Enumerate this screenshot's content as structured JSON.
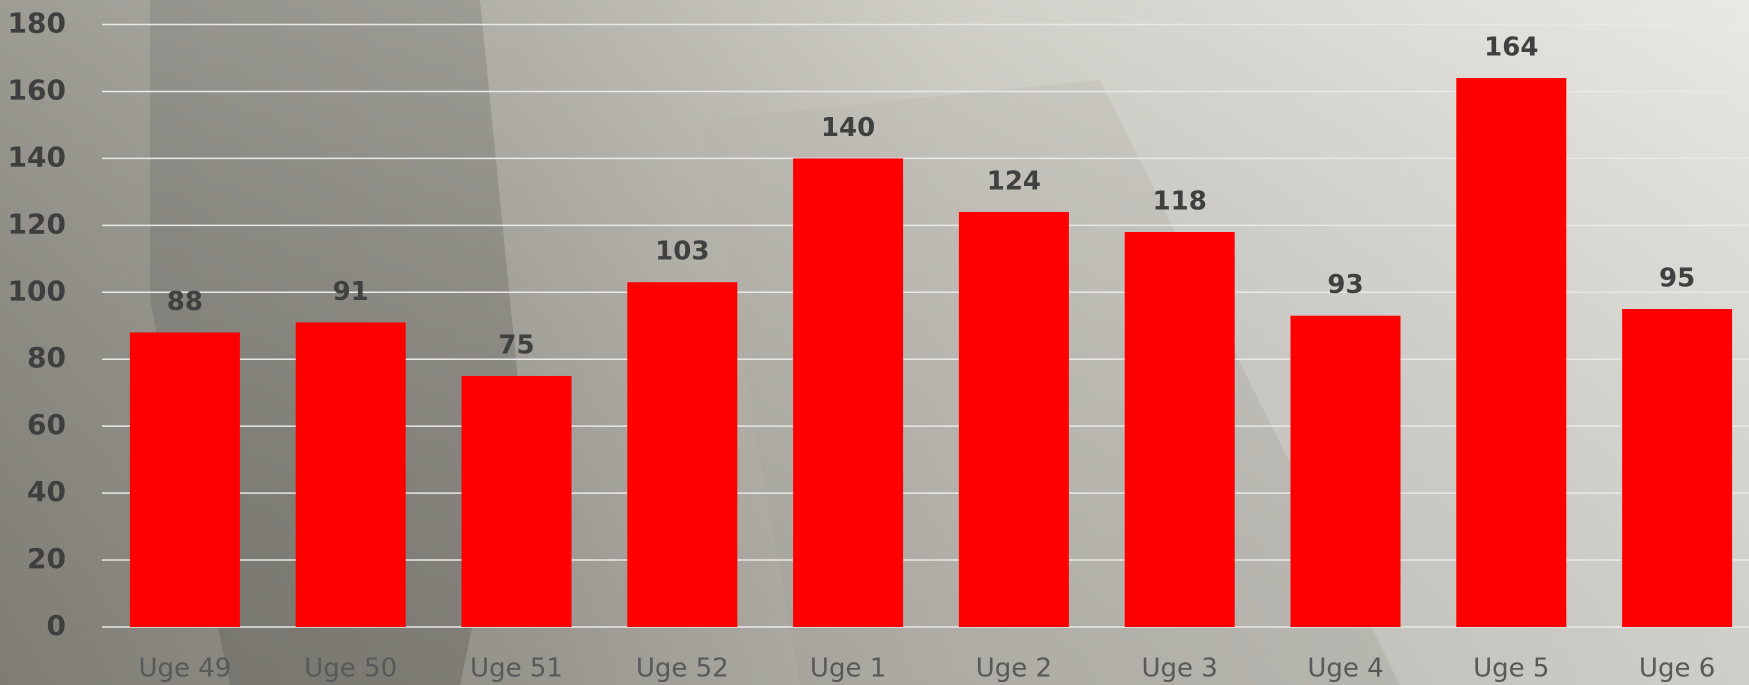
{
  "chart_data": {
    "type": "bar",
    "categories": [
      "Uge 49",
      "Uge 50",
      "Uge 51",
      "Uge 52",
      "Uge 1",
      "Uge 2",
      "Uge 3",
      "Uge 4",
      "Uge 5",
      "Uge 6"
    ],
    "values": [
      88,
      91,
      75,
      103,
      140,
      124,
      118,
      93,
      164,
      95
    ],
    "color": "#ff0000",
    "ylim": [
      0,
      180
    ],
    "yticks": [
      0,
      20,
      40,
      60,
      80,
      100,
      120,
      140,
      160,
      180
    ],
    "grid": true
  }
}
